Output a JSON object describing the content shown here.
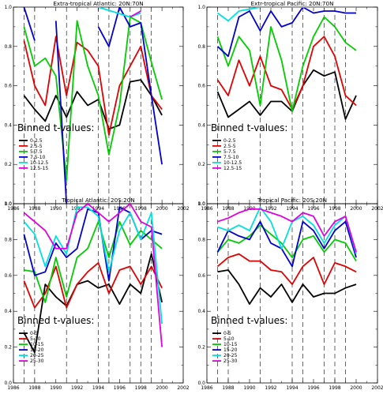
{
  "chart_data": [
    {
      "type": "line",
      "title": "Extra-tropical Atlantic: 20N:70N",
      "xlim": [
        1986,
        2002
      ],
      "ylim": [
        0.0,
        1.0
      ],
      "x_ticks": [
        "1986",
        "1988",
        "1990",
        "1992",
        "1994",
        "1996",
        "1998",
        "2000",
        "2002"
      ],
      "y_ticks": [
        "0.0",
        "0.2",
        "0.4",
        "0.6",
        "0.8",
        "1.0"
      ],
      "vlines": [
        1987,
        1988,
        1991,
        1994,
        1995,
        1997,
        1998,
        1999
      ],
      "annotation": "Binned t-values:",
      "legend_position": "bottom-left",
      "series": [
        {
          "name": "0-2.5",
          "color": "#000000",
          "x": [
            1987,
            1988,
            1989,
            1990,
            1991,
            1992,
            1993,
            1994,
            1995,
            1996,
            1997,
            1998,
            1999,
            2000
          ],
          "y": [
            0.55,
            0.48,
            0.42,
            0.55,
            0.44,
            0.57,
            0.5,
            0.53,
            0.38,
            0.4,
            0.62,
            0.63,
            0.55,
            0.45
          ]
        },
        {
          "name": "2.5-5",
          "color": "#e00000",
          "x": [
            1987,
            1988,
            1989,
            1990,
            1991,
            1992,
            1993,
            1994,
            1995,
            1996,
            1997,
            1998,
            1999,
            2000
          ],
          "y": [
            0.83,
            0.6,
            0.5,
            0.85,
            0.55,
            0.82,
            0.78,
            0.7,
            0.35,
            0.6,
            0.7,
            0.8,
            0.55,
            0.48
          ]
        },
        {
          "name": "5-7.5",
          "color": "#00cc00",
          "x": [
            1987,
            1988,
            1989,
            1990,
            1991,
            1992,
            1993,
            1994,
            1995,
            1996,
            1997,
            1998,
            1999,
            2000
          ],
          "y": [
            0.9,
            0.7,
            0.74,
            0.65,
            0.12,
            0.93,
            0.7,
            0.55,
            0.25,
            0.5,
            0.95,
            0.92,
            0.72,
            0.53
          ]
        },
        {
          "name": "7.5-10",
          "color": "#0000cc",
          "x": [
            1987,
            1988,
            1989,
            1990,
            1991,
            1992,
            1993,
            1994,
            1995,
            1996,
            1997,
            1998,
            1999,
            2000
          ],
          "y": [
            1.0,
            0.83,
            null,
            0.93,
            0.0,
            null,
            null,
            0.9,
            0.8,
            1.0,
            0.9,
            0.92,
            0.55,
            0.2
          ]
        },
        {
          "name": "10-12.5",
          "color": "#00e0e0",
          "x": [
            1993,
            1994,
            1997,
            1998
          ],
          "y": [
            1.0,
            1.0,
            0.95,
            0.97
          ]
        },
        {
          "name": "12.5-15",
          "color": "#e000e0",
          "x": [
            1997,
            1998
          ],
          "y": [
            0.95,
            0.98
          ]
        }
      ]
    },
    {
      "type": "line",
      "title": "Extr-tropical Pacific: 20N:70N",
      "xlim": [
        1986,
        2002
      ],
      "ylim": [
        0.0,
        1.0
      ],
      "x_ticks": [
        "1986",
        "1988",
        "1990",
        "1992",
        "1994",
        "1996",
        "1998",
        "2000",
        "2002"
      ],
      "y_ticks": [
        "0.0",
        "0.2",
        "0.4",
        "0.6",
        "0.8",
        "1.0"
      ],
      "vlines": [
        1987,
        1991,
        1994,
        1995,
        1997,
        1998,
        1999
      ],
      "annotation": "Binned t-values:",
      "legend_position": "bottom-left",
      "series": [
        {
          "name": "0-2.5",
          "color": "#000000",
          "x": [
            1987,
            1988,
            1989,
            1990,
            1991,
            1992,
            1993,
            1994,
            1995,
            1996,
            1997,
            1998,
            1999,
            2000
          ],
          "y": [
            0.57,
            0.44,
            0.48,
            0.52,
            0.45,
            0.52,
            0.52,
            0.47,
            0.6,
            0.68,
            0.65,
            0.67,
            0.43,
            0.55
          ]
        },
        {
          "name": "2.5-5",
          "color": "#e00000",
          "x": [
            1987,
            1988,
            1989,
            1990,
            1991,
            1992,
            1993,
            1994,
            1995,
            1996,
            1997,
            1998,
            1999,
            2000
          ],
          "y": [
            0.63,
            0.55,
            0.73,
            0.6,
            0.75,
            0.6,
            0.58,
            0.48,
            0.6,
            0.8,
            0.85,
            0.75,
            0.55,
            0.5
          ]
        },
        {
          "name": "5-7.5",
          "color": "#00cc00",
          "x": [
            1987,
            1988,
            1989,
            1990,
            1991,
            1992,
            1993,
            1994,
            1995,
            1996,
            1997,
            1998,
            1999,
            2000
          ],
          "y": [
            0.85,
            0.7,
            0.85,
            0.78,
            0.5,
            0.9,
            0.73,
            0.47,
            0.7,
            0.85,
            0.95,
            0.9,
            0.82,
            0.78
          ]
        },
        {
          "name": "7.5-10",
          "color": "#0000cc",
          "x": [
            1987,
            1988,
            1989,
            1990,
            1991,
            1992,
            1993,
            1994,
            1995,
            1996,
            1997,
            1998,
            1999,
            2000
          ],
          "y": [
            0.8,
            0.75,
            0.95,
            0.98,
            0.88,
            0.98,
            0.9,
            0.92,
            1.0,
            0.97,
            0.98,
            0.98,
            0.97,
            0.97
          ]
        },
        {
          "name": "10-12.5",
          "color": "#00e0e0",
          "x": [
            1987,
            1988,
            1989,
            1991,
            1992,
            1993,
            1994,
            1995,
            1996,
            1997,
            1998,
            1999,
            2000
          ],
          "y": [
            0.97,
            0.93,
            0.98,
            1.0,
            1.0,
            1.0,
            1.0,
            1.0,
            1.0,
            1.0,
            1.0,
            1.0,
            1.0
          ]
        },
        {
          "name": "12.5-15",
          "color": "#e000e0",
          "x": [],
          "y": []
        }
      ]
    },
    {
      "type": "line",
      "title": "Tropical Atlantic: 20S:20N",
      "xlim": [
        1986,
        2002
      ],
      "ylim": [
        0.0,
        1.0
      ],
      "x_ticks": [
        "1986",
        "1988",
        "1990",
        "1992",
        "1994",
        "1996",
        "1998",
        "2000",
        "2002"
      ],
      "y_ticks": [
        "0.0",
        "0.2",
        "0.4",
        "0.6",
        "0.8",
        "1.0"
      ],
      "vlines": [
        1987,
        1988,
        1991,
        1994,
        1995,
        1997,
        1998,
        1999
      ],
      "annotation": "Binned t-values:",
      "legend_position": "bottom-left",
      "series": [
        {
          "name": "0-5",
          "color": "#000000",
          "x": [
            1987,
            1988,
            1989,
            1990,
            1991,
            1992,
            1993,
            1994,
            1995,
            1996,
            1997,
            1998,
            1999,
            2000
          ],
          "y": [
            0.28,
            0.17,
            0.55,
            0.48,
            0.43,
            0.55,
            0.57,
            0.53,
            0.55,
            0.44,
            0.55,
            0.5,
            0.72,
            0.45
          ]
        },
        {
          "name": "5-10",
          "color": "#e00000",
          "x": [
            1987,
            1988,
            1989,
            1990,
            1991,
            1992,
            1993,
            1994,
            1995,
            1996,
            1997,
            1998,
            1999,
            2000
          ],
          "y": [
            0.57,
            0.42,
            0.5,
            0.65,
            0.42,
            0.55,
            0.62,
            0.67,
            0.5,
            0.63,
            0.65,
            0.55,
            0.65,
            0.53
          ]
        },
        {
          "name": "10-15",
          "color": "#00cc00",
          "x": [
            1987,
            1988,
            1989,
            1990,
            1991,
            1992,
            1993,
            1994,
            1995,
            1996,
            1997,
            1998,
            1999,
            2000
          ],
          "y": [
            0.63,
            0.62,
            0.45,
            0.7,
            0.48,
            0.7,
            0.75,
            0.9,
            0.7,
            0.9,
            0.77,
            0.85,
            0.8,
            0.75
          ]
        },
        {
          "name": "15-20",
          "color": "#0000cc",
          "x": [
            1987,
            1988,
            1989,
            1990,
            1991,
            1992,
            1993,
            1994,
            1995,
            1996,
            1997,
            1998,
            1999,
            2000
          ],
          "y": [
            0.83,
            0.6,
            0.62,
            0.78,
            0.7,
            0.75,
            0.97,
            0.95,
            0.57,
            0.98,
            0.95,
            0.8,
            0.85,
            0.83
          ]
        },
        {
          "name": "20-25",
          "color": "#00e0e0",
          "x": [
            1987,
            1988,
            1989,
            1990,
            1991,
            1992,
            1993,
            1994,
            1995,
            1996,
            1997,
            1998,
            1999,
            2000
          ],
          "y": [
            0.9,
            0.83,
            0.65,
            0.82,
            0.72,
            0.98,
            0.98,
            0.93,
            0.62,
            0.85,
            0.95,
            0.8,
            0.95,
            0.33
          ]
        },
        {
          "name": "25-30",
          "color": "#e000e0",
          "x": [
            1987,
            1988,
            1989,
            1990,
            1991,
            1992,
            1993,
            1994,
            1995,
            1996,
            1997,
            1998,
            1999,
            2000
          ],
          "y": [
            0.95,
            0.9,
            0.85,
            0.75,
            0.75,
            0.95,
            1.0,
            0.95,
            0.9,
            0.95,
            1.0,
            0.9,
            0.87,
            0.2
          ]
        }
      ]
    },
    {
      "type": "line",
      "title": "Tropical Pacific: 20S:20N",
      "xlim": [
        1986,
        2002
      ],
      "ylim": [
        0.0,
        1.0
      ],
      "x_ticks": [
        "1986",
        "1988",
        "1990",
        "1992",
        "1994",
        "1996",
        "1998",
        "2000",
        "2002"
      ],
      "y_ticks": [
        "0.0",
        "0.2",
        "0.4",
        "0.6",
        "0.8",
        "1.0"
      ],
      "vlines": [
        1987,
        1988,
        1991,
        1994,
        1995,
        1997,
        1998,
        1999
      ],
      "annotation": "Binned t-values:",
      "legend_position": "bottom-left",
      "series": [
        {
          "name": "0-5",
          "color": "#000000",
          "x": [
            1987,
            1988,
            1989,
            1990,
            1991,
            1992,
            1993,
            1994,
            1995,
            1996,
            1997,
            1998,
            1999,
            2000
          ],
          "y": [
            0.62,
            0.63,
            0.55,
            0.44,
            0.53,
            0.48,
            0.55,
            0.45,
            0.55,
            0.48,
            0.5,
            0.5,
            0.53,
            0.55
          ]
        },
        {
          "name": "5-10",
          "color": "#e00000",
          "x": [
            1987,
            1988,
            1989,
            1990,
            1991,
            1992,
            1993,
            1994,
            1995,
            1996,
            1997,
            1998,
            1999,
            2000
          ],
          "y": [
            0.65,
            0.7,
            0.72,
            0.68,
            0.68,
            0.63,
            0.62,
            0.55,
            0.65,
            0.7,
            0.55,
            0.67,
            0.65,
            0.62
          ]
        },
        {
          "name": "10-15",
          "color": "#00cc00",
          "x": [
            1987,
            1988,
            1989,
            1990,
            1991,
            1992,
            1993,
            1994,
            1995,
            1996,
            1997,
            1998,
            1999,
            2000
          ],
          "y": [
            0.73,
            0.8,
            0.78,
            0.82,
            0.88,
            0.83,
            0.78,
            0.7,
            0.8,
            0.82,
            0.73,
            0.8,
            0.78,
            0.68
          ]
        },
        {
          "name": "15-20",
          "color": "#0000cc",
          "x": [
            1987,
            1988,
            1989,
            1990,
            1991,
            1992,
            1993,
            1994,
            1995,
            1996,
            1997,
            1998,
            1999,
            2000
          ],
          "y": [
            0.73,
            0.85,
            0.82,
            0.8,
            0.9,
            0.78,
            0.75,
            0.65,
            0.9,
            0.85,
            0.75,
            0.85,
            0.9,
            0.7
          ]
        },
        {
          "name": "20-25",
          "color": "#00e0e0",
          "x": [
            1987,
            1988,
            1989,
            1990,
            1991,
            1992,
            1993,
            1994,
            1995,
            1996,
            1997,
            1998,
            1999,
            2000
          ],
          "y": [
            0.87,
            0.85,
            0.88,
            0.85,
            0.98,
            0.9,
            0.75,
            0.9,
            0.93,
            0.88,
            0.78,
            0.88,
            0.93,
            0.72
          ]
        },
        {
          "name": "25-30",
          "color": "#e000e0",
          "x": [
            1987,
            1988,
            1989,
            1990,
            1991,
            1992,
            1993,
            1994,
            1995,
            1996,
            1997,
            1998,
            1999,
            2000
          ],
          "y": [
            0.9,
            0.92,
            0.95,
            0.97,
            0.97,
            0.95,
            0.93,
            0.9,
            0.95,
            0.93,
            0.82,
            0.9,
            0.93,
            0.73
          ]
        }
      ]
    }
  ]
}
